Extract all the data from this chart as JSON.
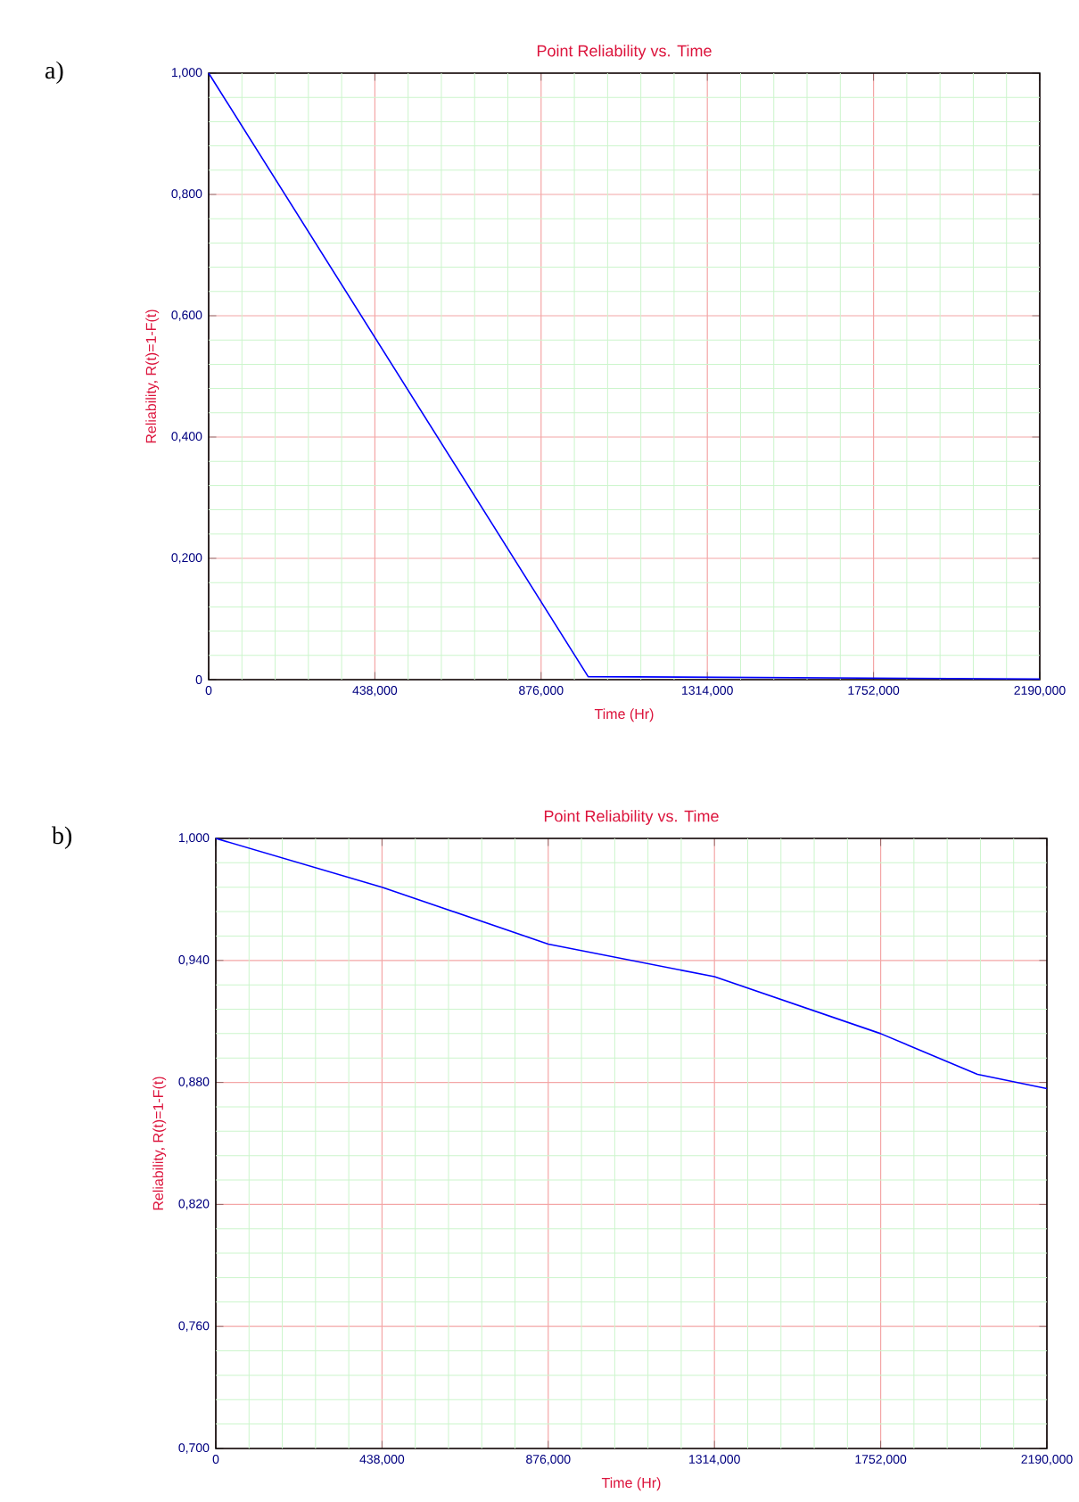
{
  "chart_data": [
    {
      "type": "line",
      "title": "Point Reliability vs. Time",
      "xlabel": "Time (Hr)",
      "ylabel": "Reliability, R(t)=1-F(t)",
      "annotations": [
        "a)"
      ],
      "x": [
        0,
        1000,
        2190
      ],
      "series": [
        {
          "color": "#0000ff",
          "values": [
            1.0,
            0.005,
            0.001
          ]
        }
      ],
      "xlim": [
        0,
        2190
      ],
      "ylim": [
        0,
        1
      ],
      "xticks": [
        {
          "value": 0,
          "label": "0"
        },
        {
          "value": 87.6,
          "label": null
        },
        {
          "value": 175.2,
          "label": null
        },
        {
          "value": 262.8,
          "label": null
        },
        {
          "value": 350.4,
          "label": null
        },
        {
          "value": 438,
          "label": "438,000"
        },
        {
          "value": 525.6,
          "label": null
        },
        {
          "value": 613.2,
          "label": null
        },
        {
          "value": 700.8,
          "label": null
        },
        {
          "value": 788.4,
          "label": null
        },
        {
          "value": 876,
          "label": "876,000"
        },
        {
          "value": 963.6,
          "label": null
        },
        {
          "value": 1051.2,
          "label": null
        },
        {
          "value": 1138.8,
          "label": null
        },
        {
          "value": 1226.4,
          "label": null
        },
        {
          "value": 1314,
          "label": "1314,000"
        },
        {
          "value": 1401.6,
          "label": null
        },
        {
          "value": 1489.2,
          "label": null
        },
        {
          "value": 1576.8,
          "label": null
        },
        {
          "value": 1664.4,
          "label": null
        },
        {
          "value": 1752,
          "label": "1752,000"
        },
        {
          "value": 1839.6,
          "label": null
        },
        {
          "value": 1927.2,
          "label": null
        },
        {
          "value": 2014.8,
          "label": null
        },
        {
          "value": 2102.4,
          "label": null
        },
        {
          "value": 2190,
          "label": "2190,000"
        }
      ],
      "yticks": [
        {
          "value": 0,
          "label": "0"
        },
        {
          "value": 0.04,
          "label": null
        },
        {
          "value": 0.08,
          "label": null
        },
        {
          "value": 0.12,
          "label": null
        },
        {
          "value": 0.16,
          "label": null
        },
        {
          "value": 0.2,
          "label": "0,200"
        },
        {
          "value": 0.24,
          "label": null
        },
        {
          "value": 0.28,
          "label": null
        },
        {
          "value": 0.32,
          "label": null
        },
        {
          "value": 0.36,
          "label": null
        },
        {
          "value": 0.4,
          "label": "0,400"
        },
        {
          "value": 0.44,
          "label": null
        },
        {
          "value": 0.48,
          "label": null
        },
        {
          "value": 0.52,
          "label": null
        },
        {
          "value": 0.56,
          "label": null
        },
        {
          "value": 0.6,
          "label": "0,600"
        },
        {
          "value": 0.64,
          "label": null
        },
        {
          "value": 0.68,
          "label": null
        },
        {
          "value": 0.72,
          "label": null
        },
        {
          "value": 0.76,
          "label": null
        },
        {
          "value": 0.8,
          "label": "0,800"
        },
        {
          "value": 0.84,
          "label": null
        },
        {
          "value": 0.88,
          "label": null
        },
        {
          "value": 0.92,
          "label": null
        },
        {
          "value": 0.96,
          "label": null
        },
        {
          "value": 1.0,
          "label": "1,000"
        }
      ],
      "grid": true,
      "marker": "none",
      "line_style": "solid"
    },
    {
      "type": "line",
      "title": "Point Reliability vs. Time",
      "xlabel": "Time (Hr)",
      "ylabel": "Reliability, R(t)=1-F(t)",
      "annotations": [
        "b)"
      ],
      "x": [
        0,
        438,
        876,
        1314,
        1752,
        2007,
        2190
      ],
      "series": [
        {
          "color": "#0000ff",
          "values": [
            1.0,
            0.976,
            0.948,
            0.932,
            0.904,
            0.884,
            0.877
          ]
        }
      ],
      "xlim": [
        0,
        2190
      ],
      "ylim": [
        0.7,
        1
      ],
      "xticks": [
        {
          "value": 0,
          "label": "0"
        },
        {
          "value": 87.6,
          "label": null
        },
        {
          "value": 175.2,
          "label": null
        },
        {
          "value": 262.8,
          "label": null
        },
        {
          "value": 350.4,
          "label": null
        },
        {
          "value": 438,
          "label": "438,000"
        },
        {
          "value": 525.6,
          "label": null
        },
        {
          "value": 613.2,
          "label": null
        },
        {
          "value": 700.8,
          "label": null
        },
        {
          "value": 788.4,
          "label": null
        },
        {
          "value": 876,
          "label": "876,000"
        },
        {
          "value": 963.6,
          "label": null
        },
        {
          "value": 1051.2,
          "label": null
        },
        {
          "value": 1138.8,
          "label": null
        },
        {
          "value": 1226.4,
          "label": null
        },
        {
          "value": 1314,
          "label": "1314,000"
        },
        {
          "value": 1401.6,
          "label": null
        },
        {
          "value": 1489.2,
          "label": null
        },
        {
          "value": 1576.8,
          "label": null
        },
        {
          "value": 1664.4,
          "label": null
        },
        {
          "value": 1752,
          "label": "1752,000"
        },
        {
          "value": 1839.6,
          "label": null
        },
        {
          "value": 1927.2,
          "label": null
        },
        {
          "value": 2014.8,
          "label": null
        },
        {
          "value": 2102.4,
          "label": null
        },
        {
          "value": 2190,
          "label": "2190,000"
        }
      ],
      "yticks": [
        {
          "value": 0.7,
          "label": "0,700"
        },
        {
          "value": 0.712,
          "label": null
        },
        {
          "value": 0.724,
          "label": null
        },
        {
          "value": 0.736,
          "label": null
        },
        {
          "value": 0.748,
          "label": null
        },
        {
          "value": 0.76,
          "label": "0,760"
        },
        {
          "value": 0.772,
          "label": null
        },
        {
          "value": 0.784,
          "label": null
        },
        {
          "value": 0.796,
          "label": null
        },
        {
          "value": 0.808,
          "label": null
        },
        {
          "value": 0.82,
          "label": "0,820"
        },
        {
          "value": 0.832,
          "label": null
        },
        {
          "value": 0.844,
          "label": null
        },
        {
          "value": 0.856,
          "label": null
        },
        {
          "value": 0.868,
          "label": null
        },
        {
          "value": 0.88,
          "label": "0,880"
        },
        {
          "value": 0.892,
          "label": null
        },
        {
          "value": 0.904,
          "label": null
        },
        {
          "value": 0.916,
          "label": null
        },
        {
          "value": 0.928,
          "label": null
        },
        {
          "value": 0.94,
          "label": "0,940"
        },
        {
          "value": 0.952,
          "label": null
        },
        {
          "value": 0.964,
          "label": null
        },
        {
          "value": 0.976,
          "label": null
        },
        {
          "value": 0.988,
          "label": null
        },
        {
          "value": 1.0,
          "label": "1,000"
        }
      ],
      "grid": true,
      "marker": "none",
      "line_style": "solid"
    }
  ]
}
